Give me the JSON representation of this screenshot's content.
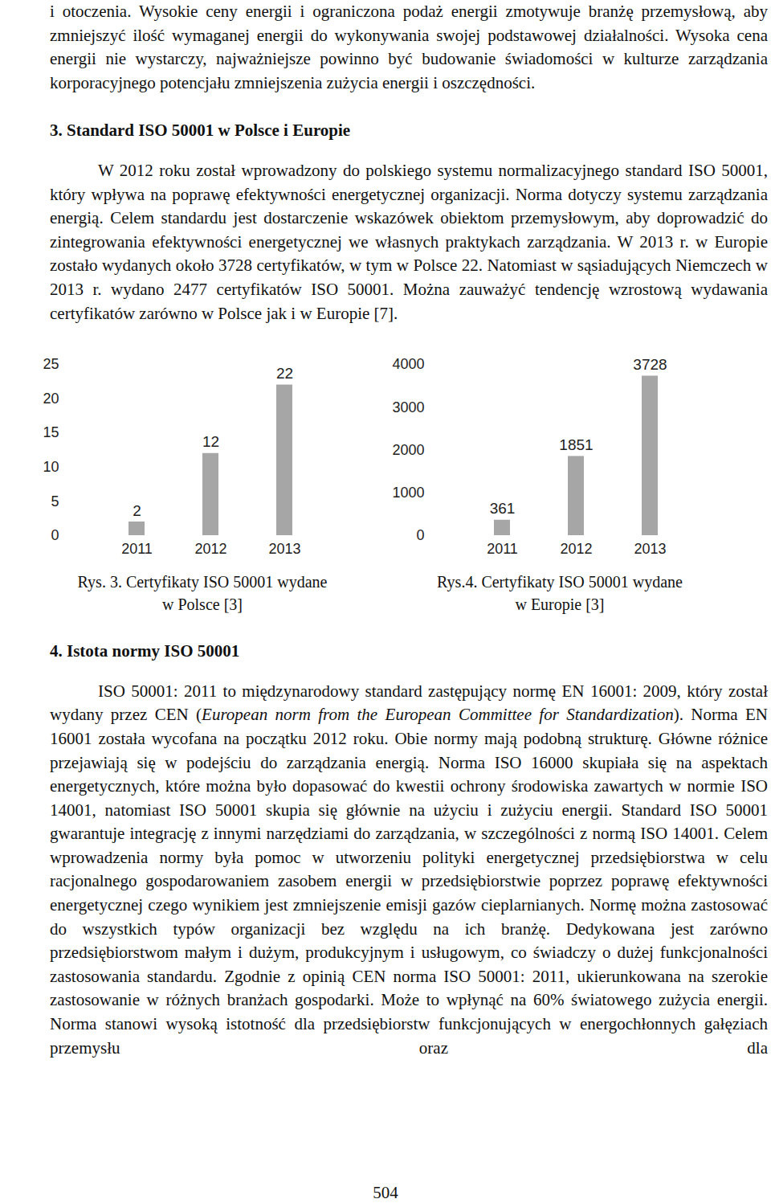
{
  "page": {
    "intro": "i otoczenia. Wysokie ceny energii i ograniczona podaż energii zmotywuje branżę przemysłową, aby zmniejszyć ilość wymaganej energii do wykonywania swojej podstawowej działalności. Wysoka cena energii nie wystarczy, najważniejsze powinno być budowanie świadomości w kulturze zarządzania korporacyjnego potencjału zmniejszenia zużycia energii i oszczędności.",
    "section_3": {
      "heading": "3. Standard ISO 50001 w Polsce i Europie",
      "paragraph": "W 2012 roku został wprowadzony do polskiego systemu normalizacyjnego standard ISO 50001, który wpływa na poprawę efektywności energetycznej organizacji. Norma dotyczy systemu zarządzania energią. Celem standardu jest dostarczenie wskazówek obiektom przemysłowym, aby doprowadzić do zintegrowania efektywności energetycznej we własnych praktykach zarządzania. W 2013 r. w Europie zostało wydanych około 3728 certyfikatów, w tym w Polsce 22. Natomiast w sąsiadujących Niemczech w 2013 r. wydano 2477 certyfikatów ISO 50001. Można zauważyć tendencję wzrostową wydawania certyfikatów zarówno w Polsce jak i w Europie [7]."
    },
    "figures": [
      {
        "caption": [
          "Rys. 3. Certyfikaty ISO 50001 wydane",
          "w Polsce [3]"
        ]
      },
      {
        "caption": [
          "Rys.4. Certyfikaty ISO 50001 wydane",
          "w Europie [3]"
        ]
      }
    ],
    "section_4": {
      "heading": "4. Istota normy ISO 50001",
      "paragraph": [
        {
          "text": "ISO 50001: 2011 to międzynarodowy standard zastępujący normę EN 16001: 2009, który został wydany przez CEN ("
        },
        {
          "text": "European norm from the European Committee for Standardization",
          "italic": true
        },
        {
          "text": "). Norma EN 16001 została wycofana na początku 2012 roku. Obie normy mają podobną strukturę. Główne różnice przejawiają się w podejściu do zarządzania energią. Norma ISO 16000 skupiała się na aspektach energetycznych, które można było dopasować do kwestii ochrony środowiska zawartych w normie ISO 14001, natomiast ISO 50001 skupia się głównie na użyciu i zużyciu energii. Standard ISO 50001 gwarantuje integrację z innymi narzędziami do zarządzania, w szczególności z normą ISO 14001. Celem wprowadzenia normy była pomoc w utworzeniu polityki energetycznej przedsiębiorstwa w celu racjonalnego gospodarowaniem zasobem energii w przedsiębiorstwie poprzez poprawę efektywności energetycznej czego wynikiem jest zmniejszenie emisji gazów cieplarnianych. Normę można zastosować do wszystkich typów organizacji bez względu na ich branżę. Dedykowana jest zarówno przedsiębiorstwom małym i dużym, produkcyjnym i usługowym, co świadczy o dużej funkcjonalności zastosowania standardu. Zgodnie z opinią CEN norma ISO 50001: 2011, ukierunkowana na szerokie zastosowanie w różnych branżach gospodarki. Może to wpłynąć na 60% światowego zużycia energii. Norma stanowi wysoką istotność dla przedsiębiorstw funkcjonujących w energochłonnych gałęziach przemysłu oraz dla"
        }
      ]
    },
    "page_number": "504"
  },
  "chart_data": [
    {
      "type": "bar",
      "categories": [
        "2011",
        "2012",
        "2013"
      ],
      "values": [
        2,
        12,
        22
      ],
      "color": "#a6a6a6",
      "ylim": [
        0,
        25
      ],
      "yticks": [
        0,
        5,
        10,
        15,
        20,
        25
      ],
      "grid": false,
      "data_labels": true
    },
    {
      "type": "bar",
      "categories": [
        "2011",
        "2012",
        "2013"
      ],
      "values": [
        361,
        1851,
        3728
      ],
      "color": "#a6a6a6",
      "ylim": [
        0,
        4000
      ],
      "yticks": [
        0,
        1000,
        2000,
        3000,
        4000
      ],
      "grid": false,
      "data_labels": true
    }
  ]
}
